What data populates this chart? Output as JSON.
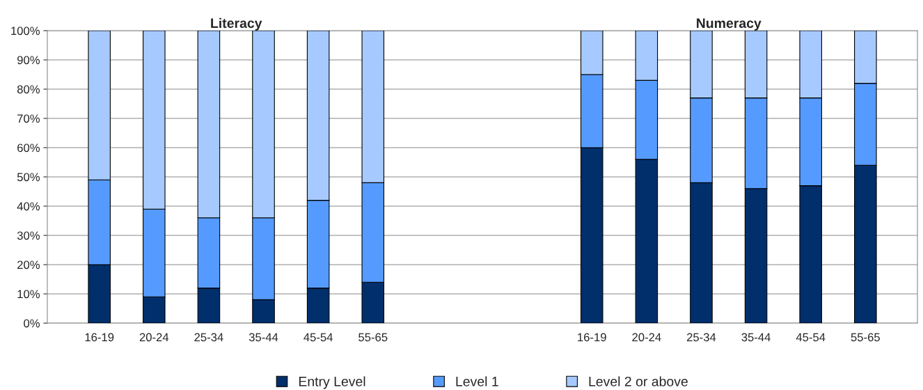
{
  "chart_data": {
    "type": "bar",
    "stacked": true,
    "categories": [
      "16-19",
      "20-24",
      "25-34",
      "35-44",
      "45-54",
      "55-65",
      null,
      null,
      null,
      "16-19",
      "20-24",
      "25-34",
      "35-44",
      "45-54",
      "55-65"
    ],
    "series": [
      {
        "name": "Entry Level",
        "color": "#002f6c",
        "values": [
          20,
          9,
          12,
          8,
          12,
          14,
          null,
          null,
          null,
          60,
          56,
          48,
          46,
          47,
          54
        ]
      },
      {
        "name": "Level 1",
        "color": "#559bff",
        "values": [
          29,
          30,
          24,
          28,
          30,
          34,
          null,
          null,
          null,
          25,
          27,
          29,
          31,
          30,
          28
        ]
      },
      {
        "name": "Level 2 or above",
        "color": "#a6caff",
        "values": [
          51,
          61,
          64,
          64,
          58,
          52,
          null,
          null,
          null,
          15,
          17,
          23,
          23,
          23,
          18
        ]
      }
    ],
    "ylim": [
      0,
      100
    ],
    "yticks": [
      {
        "value": 0,
        "label": "0%"
      },
      {
        "value": 10,
        "label": "10%"
      },
      {
        "value": 20,
        "label": "20%"
      },
      {
        "value": 30,
        "label": "30%"
      },
      {
        "value": 40,
        "label": "40%"
      },
      {
        "value": 50,
        "label": "50%"
      },
      {
        "value": 60,
        "label": "60%"
      },
      {
        "value": 70,
        "label": "70%"
      },
      {
        "value": 80,
        "label": "80%"
      },
      {
        "value": 90,
        "label": "90%"
      },
      {
        "value": 100,
        "label": "100%"
      }
    ],
    "grid": "y",
    "legend": "bottom",
    "annotations": [
      "Literacy",
      "Numeracy"
    ]
  }
}
